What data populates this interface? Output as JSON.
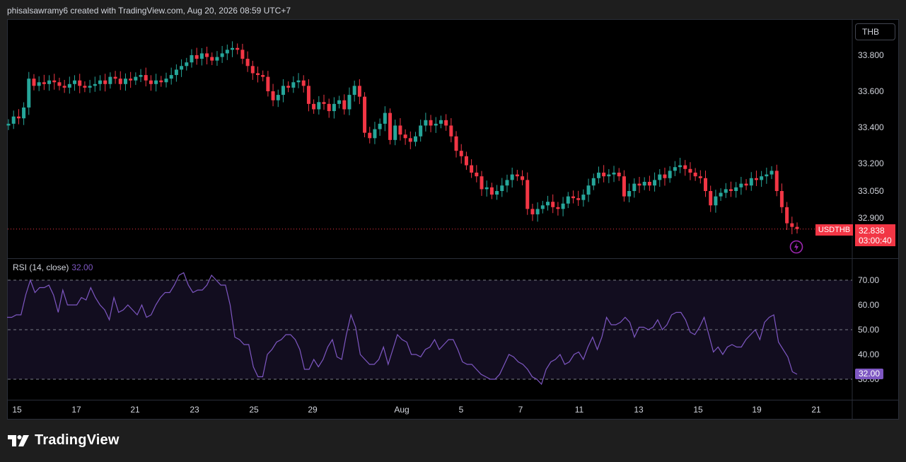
{
  "header": {
    "credit": "phisalsawramy6 created with TradingView.com, Aug 20, 2026 08:59 UTC+7"
  },
  "price_pane": {
    "unit_label": "THB",
    "y_ticks": [
      "33.800",
      "33.600",
      "33.400",
      "33.200",
      "33.050",
      "32.900"
    ],
    "symbol_tag": "USDTHB",
    "last_price": "32.838",
    "countdown": "03:00:40"
  },
  "rsi_pane": {
    "legend_label": "RSI (14, close)",
    "legend_value": "32.00",
    "y_ticks": [
      "70.00",
      "60.00",
      "50.00",
      "40.00",
      "30.00"
    ],
    "current_tag": "32.00"
  },
  "x_ticks": [
    "15",
    "17",
    "21",
    "23",
    "25",
    "29",
    "Aug",
    "5",
    "7",
    "11",
    "13",
    "15",
    "19",
    "21"
  ],
  "brand": {
    "name": "TradingView"
  },
  "colors": {
    "up": "#26a69a",
    "down": "#f23645",
    "rsi_line": "#7e57c2",
    "rsi_band": "#120d1f",
    "background": "#000000",
    "chrome": "#1e1e1e"
  },
  "chart_data": [
    {
      "type": "candlestick",
      "symbol": "USDTHB",
      "unit": "THB",
      "timeframe": "intraday (4 bars per day, approx.)",
      "ylim": [
        32.8,
        33.88
      ],
      "y_axis_scale": "non-uniform price scale as printed",
      "y_ticks": [
        33.8,
        33.6,
        33.4,
        33.2,
        33.05,
        32.9
      ],
      "x_tick_labels": [
        "15",
        "17",
        "21",
        "23",
        "25",
        "29",
        "Aug",
        "5",
        "7",
        "11",
        "13",
        "15",
        "19",
        "21"
      ],
      "last_price": 32.838,
      "close": [
        33.42,
        33.46,
        33.45,
        33.51,
        33.67,
        33.63,
        33.65,
        33.64,
        33.66,
        33.65,
        33.63,
        33.62,
        33.64,
        33.66,
        33.63,
        33.62,
        33.63,
        33.64,
        33.66,
        33.64,
        33.68,
        33.67,
        33.64,
        33.67,
        33.66,
        33.68,
        33.69,
        33.66,
        33.64,
        33.66,
        33.65,
        33.67,
        33.69,
        33.72,
        33.74,
        33.76,
        33.8,
        33.78,
        33.81,
        33.79,
        33.77,
        33.79,
        33.81,
        33.83,
        33.84,
        33.83,
        33.78,
        33.74,
        33.7,
        33.69,
        33.68,
        33.6,
        33.55,
        33.58,
        33.63,
        33.62,
        33.65,
        33.66,
        33.63,
        33.53,
        33.5,
        33.54,
        33.53,
        33.49,
        33.53,
        33.55,
        33.5,
        33.58,
        33.63,
        33.57,
        33.37,
        33.34,
        33.39,
        33.42,
        33.48,
        33.33,
        33.41,
        33.36,
        33.34,
        33.32,
        33.35,
        33.41,
        33.44,
        33.41,
        33.42,
        33.44,
        33.41,
        33.35,
        33.27,
        33.24,
        33.19,
        33.15,
        33.13,
        33.06,
        33.07,
        33.03,
        33.05,
        33.08,
        33.11,
        33.14,
        33.13,
        33.11,
        32.95,
        32.92,
        32.95,
        32.97,
        32.99,
        32.96,
        32.95,
        32.98,
        33.02,
        33.01,
        33.0,
        33.03,
        33.08,
        33.12,
        33.15,
        33.13,
        33.14,
        33.15,
        33.13,
        33.02,
        33.05,
        33.09,
        33.08,
        33.1,
        33.08,
        33.11,
        33.14,
        33.12,
        33.16,
        33.18,
        33.19,
        33.17,
        33.15,
        33.13,
        33.12,
        33.05,
        32.97,
        33.02,
        33.04,
        33.06,
        33.05,
        33.07,
        33.09,
        33.08,
        33.12,
        33.11,
        33.13,
        33.14,
        33.16,
        33.05,
        32.96,
        32.87,
        32.85,
        32.838
      ],
      "open": [
        33.41,
        33.42,
        33.46,
        33.45,
        33.51,
        33.67,
        33.63,
        33.65,
        33.64,
        33.66,
        33.65,
        33.63,
        33.62,
        33.64,
        33.66,
        33.63,
        33.62,
        33.63,
        33.64,
        33.66,
        33.64,
        33.68,
        33.67,
        33.64,
        33.67,
        33.66,
        33.68,
        33.69,
        33.66,
        33.64,
        33.66,
        33.65,
        33.67,
        33.69,
        33.72,
        33.74,
        33.76,
        33.8,
        33.78,
        33.81,
        33.79,
        33.77,
        33.79,
        33.81,
        33.83,
        33.84,
        33.83,
        33.78,
        33.74,
        33.7,
        33.69,
        33.68,
        33.6,
        33.55,
        33.58,
        33.63,
        33.62,
        33.65,
        33.66,
        33.63,
        33.53,
        33.5,
        33.54,
        33.53,
        33.49,
        33.53,
        33.55,
        33.5,
        33.58,
        33.63,
        33.57,
        33.37,
        33.34,
        33.39,
        33.42,
        33.48,
        33.33,
        33.41,
        33.36,
        33.34,
        33.32,
        33.35,
        33.41,
        33.44,
        33.41,
        33.42,
        33.44,
        33.41,
        33.35,
        33.27,
        33.24,
        33.19,
        33.15,
        33.13,
        33.06,
        33.07,
        33.03,
        33.05,
        33.08,
        33.11,
        33.14,
        33.13,
        33.11,
        32.95,
        32.92,
        32.95,
        32.97,
        32.99,
        32.96,
        32.95,
        32.98,
        33.02,
        33.01,
        33.0,
        33.03,
        33.08,
        33.12,
        33.15,
        33.13,
        33.14,
        33.15,
        33.13,
        33.02,
        33.05,
        33.09,
        33.08,
        33.1,
        33.08,
        33.11,
        33.14,
        33.12,
        33.16,
        33.18,
        33.19,
        33.17,
        33.15,
        33.13,
        33.12,
        33.05,
        32.97,
        33.02,
        33.04,
        33.06,
        33.05,
        33.07,
        33.09,
        33.08,
        33.12,
        33.11,
        33.13,
        33.14,
        33.16,
        33.05,
        32.96,
        32.87,
        32.85
      ]
    },
    {
      "type": "line",
      "name": "RSI (14, close)",
      "ylim": [
        25,
        80
      ],
      "y_ticks": [
        70,
        60,
        50,
        40,
        30
      ],
      "reference_lines": [
        70,
        50,
        30
      ],
      "values": [
        55,
        55,
        56,
        56,
        64,
        70,
        65,
        67,
        67,
        68,
        64,
        57,
        66,
        60,
        60,
        60,
        63,
        62,
        67,
        63,
        60,
        58,
        54,
        63,
        57,
        58,
        60,
        58,
        56,
        60,
        55,
        56,
        60,
        63,
        65,
        65,
        68,
        72,
        73,
        68,
        65,
        66,
        66,
        68,
        72,
        70,
        68,
        68,
        60,
        47,
        46,
        44,
        44,
        35,
        31,
        31,
        40,
        42,
        45,
        46,
        48,
        48,
        46,
        42,
        34,
        34,
        38,
        35,
        38,
        43,
        46,
        39,
        38,
        48,
        56,
        51,
        40,
        38,
        36,
        36,
        38,
        43,
        36,
        42,
        48,
        46,
        45,
        40,
        40,
        39,
        42,
        43,
        46,
        42,
        44,
        46,
        46,
        42,
        37,
        36,
        36,
        34,
        32,
        31,
        30,
        30,
        32,
        36,
        40,
        39,
        37,
        36,
        34,
        31,
        30,
        28,
        34,
        37,
        38,
        40,
        36,
        37,
        40,
        41,
        38,
        43,
        47,
        42,
        47,
        55,
        52,
        52,
        53,
        55,
        53,
        47,
        51,
        51,
        50,
        51,
        54,
        50,
        52,
        56,
        57,
        57,
        54,
        49,
        48,
        51,
        55,
        48,
        41,
        43,
        40,
        43,
        44,
        43,
        43,
        46,
        48,
        50,
        46,
        53,
        55,
        56,
        45,
        42,
        39,
        33,
        32
      ]
    }
  ]
}
